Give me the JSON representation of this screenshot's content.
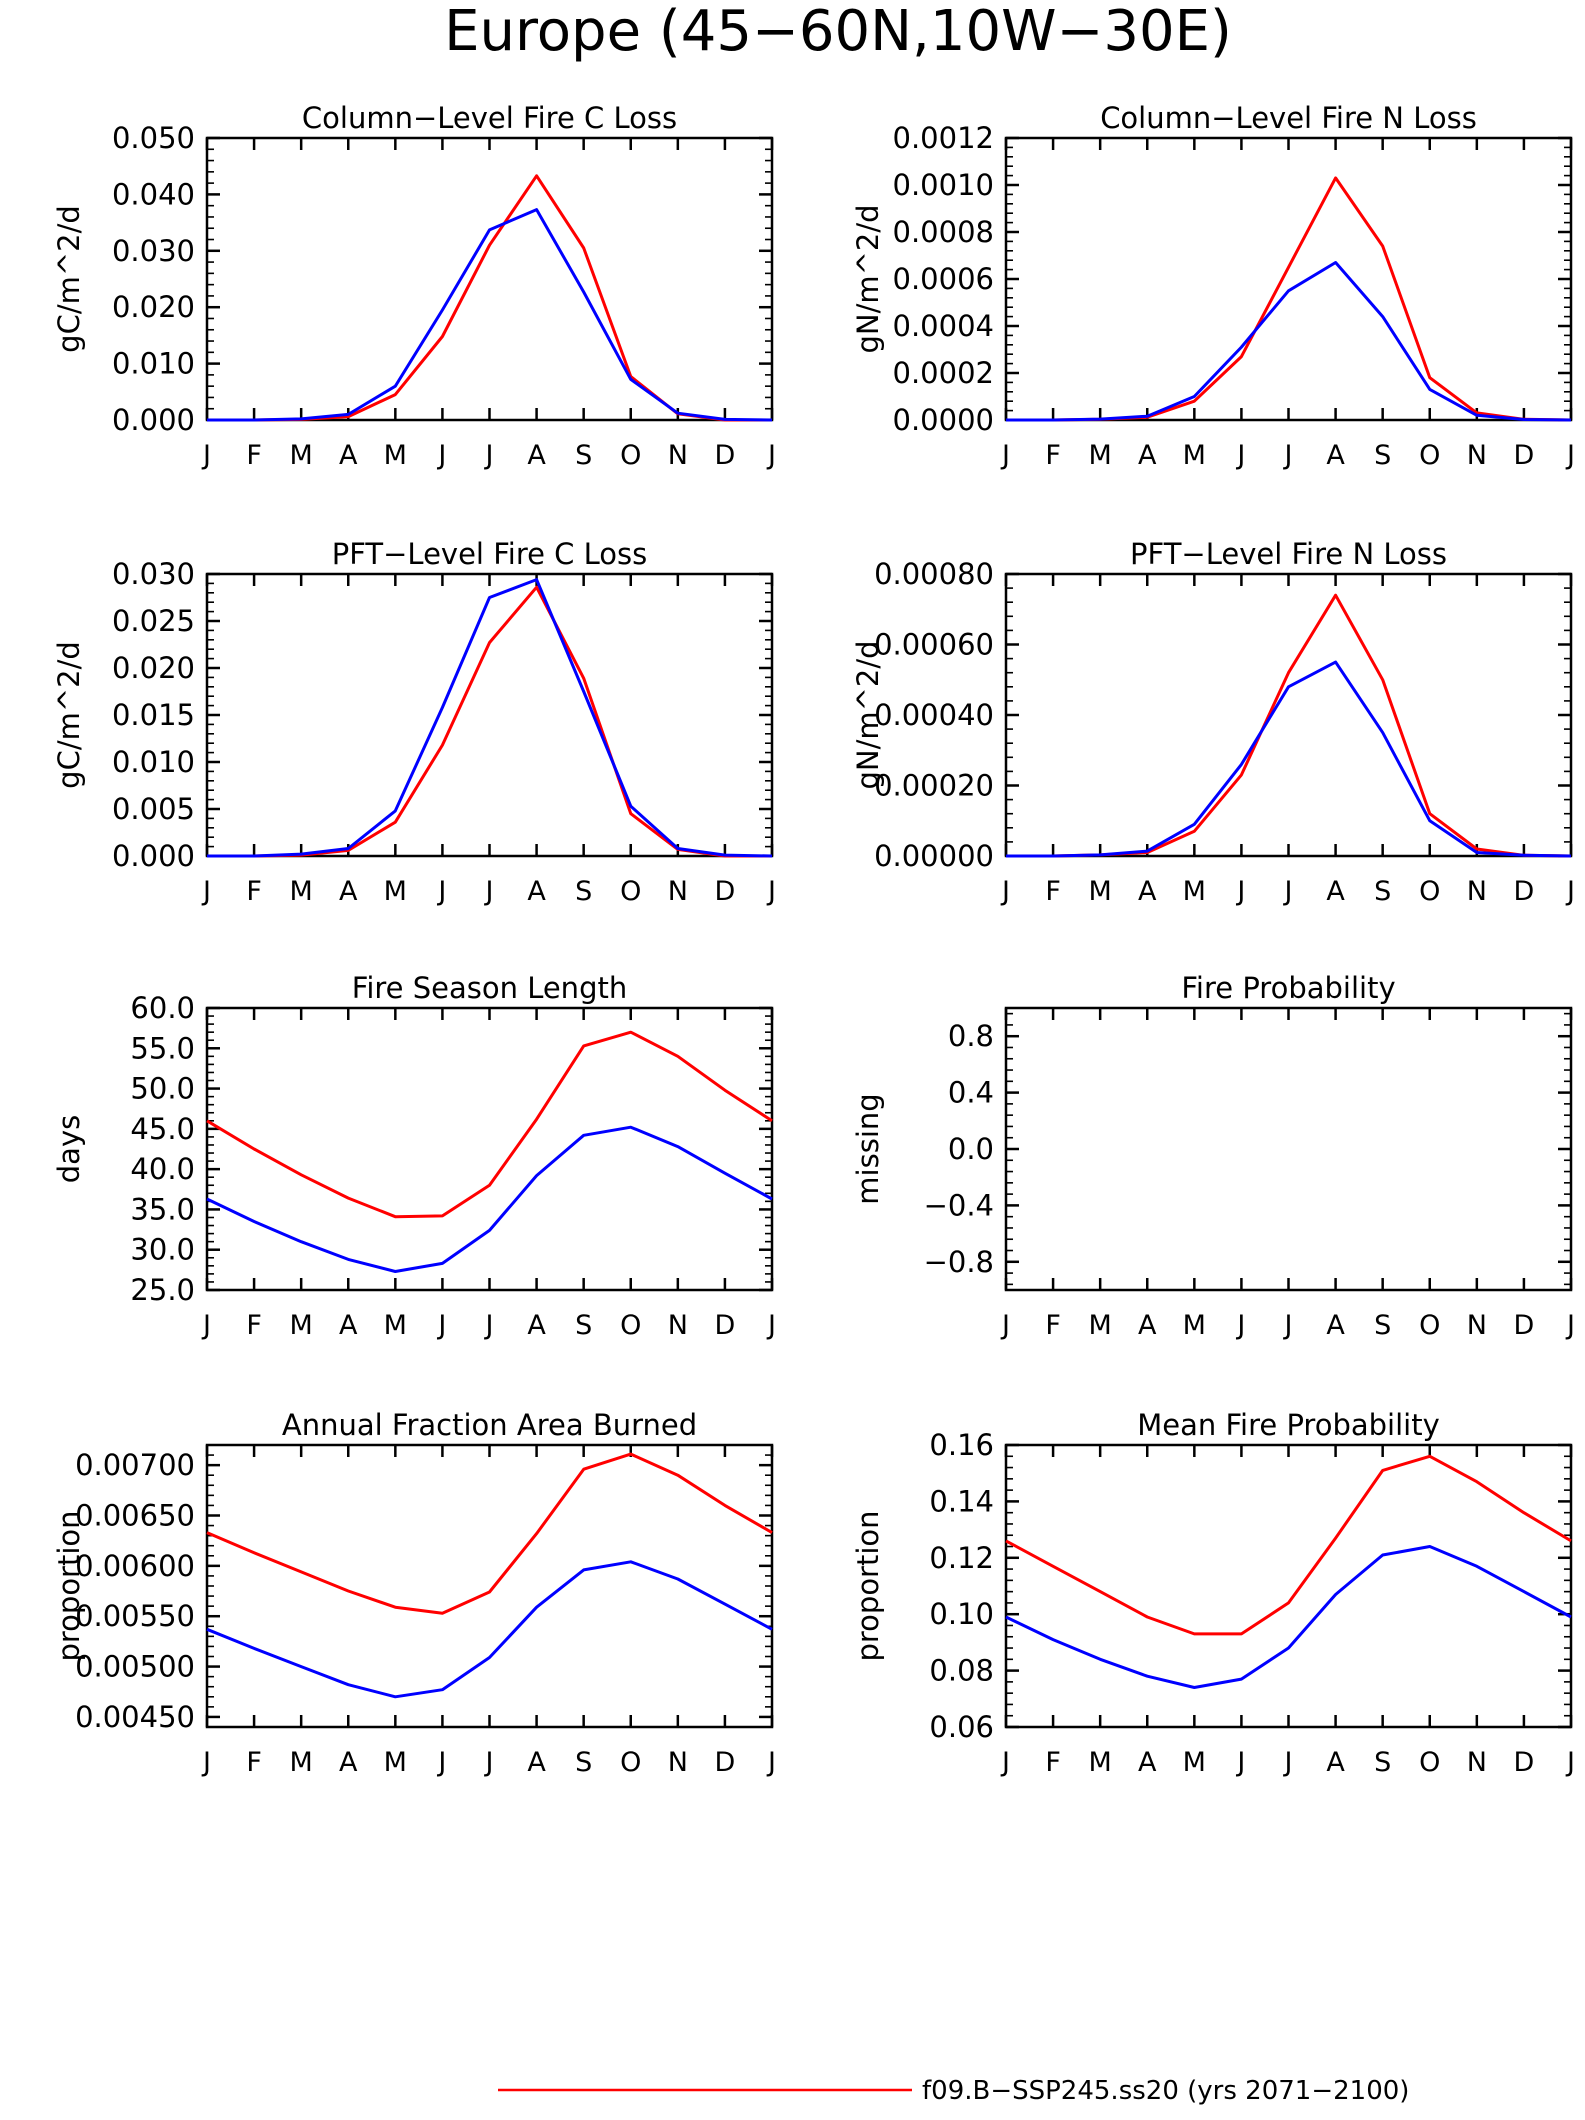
{
  "figure_title": "Europe (45−60N,10W−30E)",
  "months": [
    "J",
    "F",
    "M",
    "A",
    "M",
    "J",
    "J",
    "A",
    "S",
    "O",
    "N",
    "D",
    "J"
  ],
  "colors": {
    "series1": "#ff0000",
    "series2": "#0000ff"
  },
  "legend": {
    "label": "f09.B−SSP245.ss20 (yrs 2071−2100)"
  },
  "chart_data": [
    {
      "type": "line",
      "title": "Column−Level Fire C Loss",
      "ylabel": "gC/m^2/d",
      "ylim": [
        0,
        0.05
      ],
      "yticks": [
        0.0,
        0.01,
        0.02,
        0.03,
        0.04,
        0.05
      ],
      "ytick_labels": [
        "0.000",
        "0.010",
        "0.020",
        "0.030",
        "0.040",
        "0.050"
      ],
      "series": [
        {
          "color": "#ff0000",
          "values": [
            0.0,
            0.0,
            0.0001,
            0.0006,
            0.0045,
            0.0148,
            0.031,
            0.0433,
            0.0305,
            0.0077,
            0.0011,
            0.0,
            0.0
          ]
        },
        {
          "color": "#0000ff",
          "values": [
            0.0,
            0.0,
            0.0002,
            0.001,
            0.006,
            0.0195,
            0.0337,
            0.0373,
            0.0227,
            0.0072,
            0.0012,
            0.0001,
            0.0
          ]
        }
      ]
    },
    {
      "type": "line",
      "title": "Column−Level Fire N Loss",
      "ylabel": "gN/m^2/d",
      "ylim": [
        0,
        0.0012
      ],
      "yticks": [
        0.0,
        0.0002,
        0.0004,
        0.0006,
        0.0008,
        0.001,
        0.0012
      ],
      "ytick_labels": [
        "0.0000",
        "0.0002",
        "0.0004",
        "0.0006",
        "0.0008",
        "0.0010",
        "0.0012"
      ],
      "series": [
        {
          "color": "#ff0000",
          "values": [
            0.0,
            0.0,
            3e-06,
            1.2e-05,
            8e-05,
            0.00027,
            0.00065,
            0.00103,
            0.00074,
            0.00018,
            3e-05,
            3e-06,
            0.0
          ]
        },
        {
          "color": "#0000ff",
          "values": [
            0.0,
            0.0,
            4e-06,
            1.6e-05,
            0.0001,
            0.00031,
            0.00055,
            0.00067,
            0.00044,
            0.00013,
            2e-05,
            2e-06,
            0.0
          ]
        }
      ]
    },
    {
      "type": "line",
      "title": "PFT−Level Fire C Loss",
      "ylabel": "gC/m^2/d",
      "ylim": [
        0,
        0.03
      ],
      "yticks": [
        0.0,
        0.005,
        0.01,
        0.015,
        0.02,
        0.025,
        0.03
      ],
      "ytick_labels": [
        "0.000",
        "0.005",
        "0.010",
        "0.015",
        "0.020",
        "0.025",
        "0.030"
      ],
      "series": [
        {
          "color": "#ff0000",
          "values": [
            0.0,
            0.0,
            0.0001,
            0.0006,
            0.0036,
            0.0118,
            0.0227,
            0.0286,
            0.0189,
            0.0045,
            0.0007,
            0.0,
            0.0
          ]
        },
        {
          "color": "#0000ff",
          "values": [
            0.0,
            0.0,
            0.0002,
            0.0008,
            0.0048,
            0.0158,
            0.0275,
            0.0294,
            0.0175,
            0.0053,
            0.0008,
            0.0001,
            0.0
          ]
        }
      ]
    },
    {
      "type": "line",
      "title": "PFT−Level Fire N Loss",
      "ylabel": "gN/m^2/d",
      "ylim": [
        0,
        0.0008
      ],
      "yticks": [
        0.0,
        0.0002,
        0.0004,
        0.0006,
        0.0008
      ],
      "ytick_labels": [
        "0.00000",
        "0.00020",
        "0.00040",
        "0.00060",
        "0.00080"
      ],
      "series": [
        {
          "color": "#ff0000",
          "values": [
            0.0,
            0.0,
            3e-06,
            1e-05,
            7e-05,
            0.00023,
            0.00052,
            0.00074,
            0.0005,
            0.00012,
            2e-05,
            2e-06,
            0.0
          ]
        },
        {
          "color": "#0000ff",
          "values": [
            0.0,
            0.0,
            3e-06,
            1.4e-05,
            9e-05,
            0.00026,
            0.00048,
            0.00055,
            0.00035,
            0.0001,
            1e-05,
            2e-06,
            0.0
          ]
        }
      ]
    },
    {
      "type": "line",
      "title": "Fire Season Length",
      "ylabel": "days",
      "ylim": [
        25,
        60
      ],
      "yticks": [
        25,
        30,
        35,
        40,
        45,
        50,
        55,
        60
      ],
      "ytick_labels": [
        "25.0",
        "30.0",
        "35.0",
        "40.0",
        "45.0",
        "50.0",
        "55.0",
        "60.0"
      ],
      "series": [
        {
          "color": "#ff0000",
          "values": [
            46.0,
            42.5,
            39.3,
            36.4,
            34.1,
            34.2,
            38.0,
            46.2,
            55.3,
            57.0,
            54.0,
            49.8,
            46.0
          ]
        },
        {
          "color": "#0000ff",
          "values": [
            36.3,
            33.5,
            31.0,
            28.8,
            27.3,
            28.3,
            32.4,
            39.2,
            44.2,
            45.2,
            42.8,
            39.5,
            36.3
          ]
        }
      ]
    },
    {
      "type": "line",
      "title": "Fire Probability",
      "ylabel": "missing",
      "ylim": [
        -1,
        1
      ],
      "yticks": [
        -0.8,
        -0.4,
        0.0,
        0.4,
        0.8
      ],
      "ytick_labels": [
        "−0.8",
        "−0.4",
        "0.0",
        "0.4",
        "0.8"
      ],
      "series": []
    },
    {
      "type": "line",
      "title": "Annual Fraction Area Burned",
      "ylabel": "proportion",
      "ylim": [
        0.0044,
        0.0072
      ],
      "yticks": [
        0.0045,
        0.005,
        0.0055,
        0.006,
        0.0065,
        0.007
      ],
      "ytick_labels": [
        "0.00450",
        "0.00500",
        "0.00550",
        "0.00600",
        "0.00650",
        "0.00700"
      ],
      "series": [
        {
          "color": "#ff0000",
          "values": [
            0.00633,
            0.00613,
            0.00594,
            0.00575,
            0.00559,
            0.00553,
            0.00574,
            0.00632,
            0.00696,
            0.00711,
            0.0069,
            0.0066,
            0.00633
          ]
        },
        {
          "color": "#0000ff",
          "values": [
            0.00537,
            0.00518,
            0.005,
            0.00482,
            0.0047,
            0.00477,
            0.00509,
            0.00559,
            0.00596,
            0.00604,
            0.00587,
            0.00562,
            0.00537
          ]
        }
      ]
    },
    {
      "type": "line",
      "title": "Mean Fire Probability",
      "ylabel": "proportion",
      "ylim": [
        0.06,
        0.16
      ],
      "yticks": [
        0.06,
        0.08,
        0.1,
        0.12,
        0.14,
        0.16
      ],
      "ytick_labels": [
        "0.06",
        "0.08",
        "0.10",
        "0.12",
        "0.14",
        "0.16"
      ],
      "series": [
        {
          "color": "#ff0000",
          "values": [
            0.126,
            0.117,
            0.108,
            0.099,
            0.093,
            0.093,
            0.104,
            0.127,
            0.151,
            0.156,
            0.147,
            0.136,
            0.126
          ]
        },
        {
          "color": "#0000ff",
          "values": [
            0.099,
            0.091,
            0.084,
            0.078,
            0.074,
            0.077,
            0.088,
            0.107,
            0.121,
            0.124,
            0.117,
            0.108,
            0.099
          ]
        }
      ]
    }
  ]
}
